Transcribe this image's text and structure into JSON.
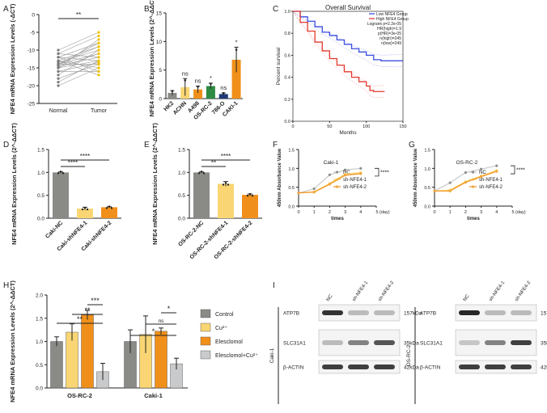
{
  "colors": {
    "gray": "#8a8a87",
    "yellow": "#f9d673",
    "orange": "#f0901a",
    "green": "#2e8b43",
    "navy": "#1f3a78",
    "red": "#e43a2e",
    "blue": "#3a4ee0",
    "lightgray": "#c9cacb",
    "tumorYellow": "#f3c200"
  },
  "chart_data": [
    {
      "panel": "A",
      "type": "paired-scatter",
      "ylabel": "NFE4 mRNA Expression Levels (-ΔCT)",
      "categories": [
        "Normal",
        "Tumor"
      ],
      "ylim": [
        -25,
        0
      ],
      "yticks": [
        "0",
        "-5",
        "-10",
        "-15",
        "-20",
        "-25"
      ],
      "significance": "**",
      "pairs": [
        [
          -10,
          -5
        ],
        [
          -11,
          -6
        ],
        [
          -12,
          -8
        ],
        [
          -13,
          -9
        ],
        [
          -13.5,
          -10
        ],
        [
          -14,
          -11
        ],
        [
          -14.5,
          -12
        ],
        [
          -15,
          -13
        ],
        [
          -16,
          -13.5
        ],
        [
          -14,
          -14
        ],
        [
          -13,
          -15
        ],
        [
          -17,
          -10
        ],
        [
          -12,
          -16
        ],
        [
          -18,
          -14
        ],
        [
          -15,
          -7
        ],
        [
          -16,
          -16
        ],
        [
          -11,
          -12
        ],
        [
          -19,
          -13
        ],
        [
          -14,
          -9
        ],
        [
          -13,
          -17
        ],
        [
          -15,
          -11
        ],
        [
          -12,
          -13
        ],
        [
          -20,
          -15
        ],
        [
          -14,
          -8
        ]
      ]
    },
    {
      "panel": "B",
      "type": "bar",
      "ylabel": "NFE4 mRNA Expression Levels (2^-ΔΔCT)",
      "categories": [
        "HK2",
        "ACHN",
        "A498",
        "OS-RC-2",
        "786-O",
        "CAKI-1"
      ],
      "values": [
        1.0,
        2.0,
        1.6,
        2.2,
        0.8,
        6.8
      ],
      "errors": [
        0.4,
        1.5,
        0.6,
        0.5,
        0.2,
        2.2
      ],
      "ylim": [
        0,
        15
      ],
      "yticks": [
        "0",
        "5",
        "10",
        "15"
      ],
      "sig": [
        "",
        "ns",
        "ns",
        "*",
        "ns",
        "*"
      ]
    },
    {
      "panel": "C",
      "type": "line",
      "title": "Overall Survival",
      "xlabel": "Months",
      "ylabel": "Percent survival",
      "ylim": [
        0,
        1
      ],
      "xlim": [
        0,
        150
      ],
      "yticks": [
        "0.0",
        "0.2",
        "0.4",
        "0.6",
        "0.8",
        "1.0"
      ],
      "xticks": [
        "0",
        "50",
        "100",
        "150"
      ],
      "legend": [
        "Low NFE4 Group",
        "High NFE4 Group"
      ],
      "stats": [
        "Logrank p=2.2e-05",
        "HR(high)=1.9",
        "p(HR)=3e-05",
        "n(high)=245",
        "n(low)=249"
      ],
      "series": [
        {
          "name": "Low NFE4 Group",
          "x": [
            0,
            10,
            20,
            30,
            40,
            50,
            60,
            70,
            80,
            90,
            100,
            110,
            120,
            150
          ],
          "y": [
            1.0,
            0.95,
            0.91,
            0.86,
            0.81,
            0.78,
            0.74,
            0.7,
            0.66,
            0.63,
            0.6,
            0.56,
            0.55,
            0.55
          ]
        },
        {
          "name": "High NFE4 Group",
          "x": [
            0,
            10,
            20,
            30,
            40,
            50,
            60,
            70,
            80,
            90,
            100,
            105,
            110,
            125
          ],
          "y": [
            1.0,
            0.9,
            0.82,
            0.72,
            0.64,
            0.57,
            0.51,
            0.45,
            0.4,
            0.36,
            0.32,
            0.28,
            0.27,
            0.27
          ]
        }
      ]
    },
    {
      "panel": "D",
      "type": "bar",
      "ylabel": "NFE4 mRNA Expression Levels (2^-ΔΔCT)",
      "categories": [
        "Caki-NC",
        "Caki-shNFE4-1",
        "Caki-shNFE4-2"
      ],
      "values": [
        1.0,
        0.21,
        0.24
      ],
      "errors": [
        0.01,
        0.03,
        0.01
      ],
      "ylim": [
        0,
        1.5
      ],
      "yticks": [
        "0.0",
        "0.5",
        "1.0",
        "1.5"
      ],
      "sig": [
        "****",
        "****"
      ]
    },
    {
      "panel": "E",
      "type": "bar",
      "ylabel": "NFE4 mRNA Expression Levels (2^-ΔΔCT)",
      "categories": [
        "OS-RC-2-NC",
        "OS-RC-2-shNFE4-1",
        "OS-RC-2-shNFE4-2"
      ],
      "values": [
        1.0,
        0.75,
        0.51
      ],
      "errors": [
        0.01,
        0.05,
        0.02
      ],
      "ylim": [
        0,
        1.5
      ],
      "yticks": [
        "0.0",
        "0.5",
        "1.0",
        "1.5"
      ],
      "sig": [
        "**",
        "****"
      ]
    },
    {
      "panel": "F",
      "type": "line",
      "title": "Caki-1",
      "xlabel": "times",
      "ylabel": "450nm Absorbance Value",
      "xlim": [
        0,
        5
      ],
      "ylim": [
        0,
        1.5
      ],
      "yticks": [
        "0.0",
        "0.5",
        "1.0",
        "1.5"
      ],
      "xticks": [
        "0",
        "1",
        "2",
        "3",
        "4",
        "5 (day)"
      ],
      "sig": "****",
      "series": [
        {
          "name": "NC",
          "y": [
            0.35,
            0.46,
            0.83,
            0.96,
            1.0
          ]
        },
        {
          "name": "sh-NFE4-1",
          "y": [
            0.35,
            0.38,
            0.6,
            0.85,
            0.89
          ]
        },
        {
          "name": "sh-NFE4-2",
          "y": [
            0.35,
            0.37,
            0.58,
            0.82,
            0.86
          ]
        }
      ]
    },
    {
      "panel": "G",
      "type": "line",
      "title": "OS-RC-2",
      "xlabel": "times",
      "ylabel": "450nm Absorbance Value",
      "xlim": [
        0,
        5
      ],
      "ylim": [
        0,
        1.5
      ],
      "yticks": [
        "0.0",
        "0.5",
        "1.0",
        "1.5"
      ],
      "xticks": [
        "0",
        "1",
        "2",
        "3",
        "4",
        "5 (day)"
      ],
      "sig": "****",
      "series": [
        {
          "name": "NC",
          "y": [
            0.4,
            0.62,
            0.89,
            0.98,
            1.07
          ]
        },
        {
          "name": "sh-NFE4-1",
          "y": [
            0.4,
            0.43,
            0.65,
            0.8,
            0.95
          ]
        },
        {
          "name": "sh-NFE4-2",
          "y": [
            0.4,
            0.4,
            0.63,
            0.78,
            0.92
          ]
        }
      ]
    },
    {
      "panel": "H",
      "type": "grouped-bar",
      "ylabel": "NFE4 mRNA Expression Levels (2^-ΔΔCT)",
      "groups": [
        "OS-RC-2",
        "Caki-1"
      ],
      "ylim": [
        0,
        2.0
      ],
      "yticks": [
        "0.0",
        "0.5",
        "1.0",
        "1.5",
        "2.0"
      ],
      "series": [
        {
          "name": "Control",
          "values": [
            1.0,
            1.0
          ],
          "errors": [
            0.1,
            0.25
          ]
        },
        {
          "name": "Cu²⁺",
          "values": [
            1.2,
            1.15
          ],
          "errors": [
            0.18,
            0.4
          ]
        },
        {
          "name": "Elesclomol",
          "values": [
            1.57,
            1.22
          ],
          "errors": [
            0.1,
            0.07
          ]
        },
        {
          "name": "Elesclomol+Cu²⁺",
          "values": [
            0.35,
            0.52
          ],
          "errors": [
            0.18,
            0.12
          ]
        }
      ],
      "sig": [
        "***",
        "**",
        "**",
        "*",
        "ns",
        "*"
      ]
    }
  ],
  "panel_labels": [
    "A",
    "B",
    "C",
    "D",
    "E",
    "F",
    "G",
    "H",
    "I"
  ],
  "blot": {
    "left": {
      "cell": "Caki-1",
      "lanes": [
        "NC",
        "sh-NFE4-1",
        "sh-NFE4-2"
      ],
      "proteins": [
        "ATP7B",
        "SLC31A1",
        "β-ACTIN"
      ],
      "sizes": [
        "157kDa",
        "35kDa",
        "42kDa"
      ]
    },
    "right": {
      "cell": "OS-RC-2",
      "lanes": [
        "NC",
        "sh-NFE4-1",
        "sh-NFE4-2"
      ],
      "proteins": [
        "ATP7B",
        "SLC31A1",
        "β-ACTIN"
      ],
      "sizes": [
        "157kDa",
        "35kDa",
        "42kDa"
      ]
    }
  }
}
